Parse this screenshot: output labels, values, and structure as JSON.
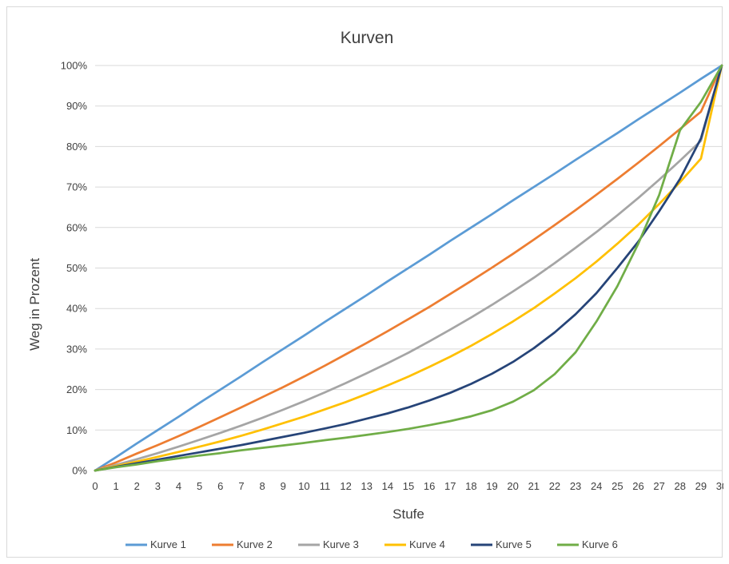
{
  "chart_data": {
    "type": "line",
    "title": "Kurven",
    "xlabel": "Stufe",
    "ylabel": "Weg in Prozent",
    "x": [
      0,
      1,
      2,
      3,
      4,
      5,
      6,
      7,
      8,
      9,
      10,
      11,
      12,
      13,
      14,
      15,
      16,
      17,
      18,
      19,
      20,
      21,
      22,
      23,
      24,
      25,
      26,
      27,
      28,
      29,
      30
    ],
    "xlim": [
      0,
      30
    ],
    "ylim": [
      0,
      100
    ],
    "ytick_step": 10,
    "ytick_format": "percent",
    "grid": true,
    "legend_position": "bottom",
    "series": [
      {
        "name": "Kurve 1",
        "color": "#5b9bd5",
        "values": [
          0,
          3.3,
          6.7,
          10,
          13.3,
          16.7,
          20,
          23.3,
          26.7,
          30,
          33.3,
          36.7,
          40,
          43.3,
          46.7,
          50,
          53.3,
          56.7,
          60,
          63.3,
          66.7,
          70,
          73.3,
          76.7,
          80,
          83.3,
          86.7,
          90,
          93.3,
          96.7,
          100
        ]
      },
      {
        "name": "Kurve 2",
        "color": "#ed7d31",
        "values": [
          0,
          2,
          4.2,
          6.3,
          8.5,
          10.8,
          13.2,
          15.6,
          18.1,
          20.6,
          23.2,
          25.9,
          28.7,
          31.5,
          34.4,
          37.4,
          40.4,
          43.6,
          46.8,
          50.1,
          53.5,
          57,
          60.6,
          64.3,
          68.1,
          72,
          76,
          80.1,
          84.3,
          88.6,
          100
        ]
      },
      {
        "name": "Kurve 3",
        "color": "#a5a5a5",
        "values": [
          0,
          1.4,
          2.8,
          4.3,
          5.9,
          7.6,
          9.3,
          11.1,
          13,
          15,
          17.1,
          19.3,
          21.6,
          24,
          26.5,
          29.1,
          31.9,
          34.8,
          37.8,
          40.9,
          44.2,
          47.6,
          51.2,
          55,
          58.9,
          63,
          67.3,
          71.8,
          76.5,
          81.4,
          100
        ]
      },
      {
        "name": "Kurve 4",
        "color": "#ffc000",
        "values": [
          0,
          1.1,
          2.2,
          3.4,
          4.6,
          5.9,
          7.2,
          8.6,
          10.1,
          11.7,
          13.3,
          15.1,
          16.9,
          18.9,
          21,
          23.2,
          25.6,
          28.1,
          30.8,
          33.7,
          36.8,
          40.1,
          43.7,
          47.5,
          51.6,
          56,
          60.7,
          65.8,
          71.2,
          77,
          100
        ]
      },
      {
        "name": "Kurve 5",
        "color": "#264478",
        "values": [
          0,
          0.9,
          1.8,
          2.7,
          3.6,
          4.5,
          5.4,
          6.3,
          7.3,
          8.3,
          9.3,
          10.4,
          11.5,
          12.8,
          14.1,
          15.6,
          17.3,
          19.2,
          21.4,
          23.9,
          26.8,
          30.2,
          34.1,
          38.6,
          43.8,
          50,
          56.5,
          64,
          72,
          82,
          100
        ]
      },
      {
        "name": "Kurve 6",
        "color": "#70ad47",
        "values": [
          0,
          0.8,
          1.5,
          2.3,
          3,
          3.7,
          4.3,
          5,
          5.6,
          6.2,
          6.8,
          7.5,
          8.1,
          8.8,
          9.5,
          10.3,
          11.2,
          12.2,
          13.4,
          14.9,
          17,
          19.8,
          23.8,
          29.2,
          36.8,
          45.5,
          56,
          68,
          84,
          91,
          100
        ]
      }
    ]
  }
}
